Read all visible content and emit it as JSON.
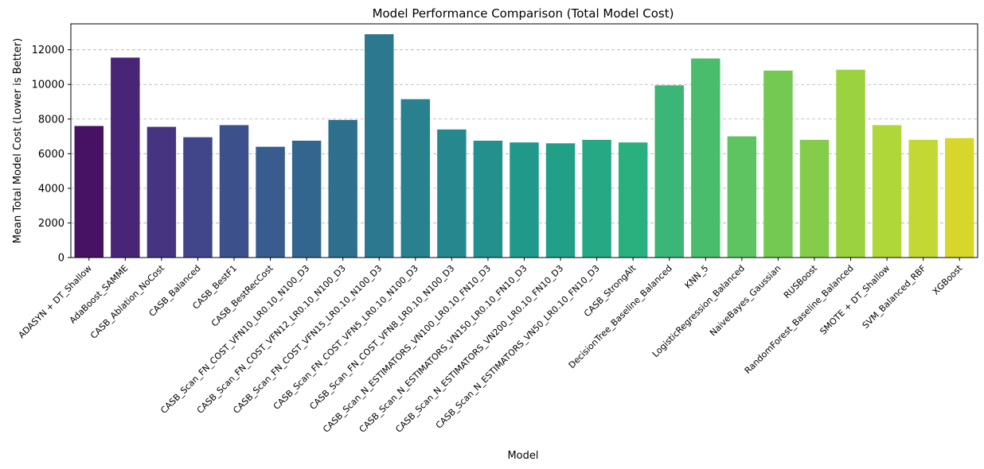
{
  "chart_data": {
    "type": "bar",
    "title": "Model Performance Comparison (Total Model Cost)",
    "xlabel": "Model",
    "ylabel": "Mean Total Model Cost (Lower is Better)",
    "ylim": [
      0,
      13500
    ],
    "yticks": [
      0,
      2000,
      4000,
      6000,
      8000,
      10000,
      12000
    ],
    "grid": "y-dashed",
    "palette": "viridis",
    "categories": [
      "ADASYN + DT_Shallow",
      "AdaBoost_SAMME",
      "CASB_Ablation_NoCost",
      "CASB_Balanced",
      "CASB_BestF1",
      "CASB_BestRecCost",
      "CASB_Scan_FN_COST_VFN10_LR0.10_N100_D3",
      "CASB_Scan_FN_COST_VFN12_LR0.10_N100_D3",
      "CASB_Scan_FN_COST_VFN15_LR0.10_N100_D3",
      "CASB_Scan_FN_COST_VFN5_LR0.10_N100_D3",
      "CASB_Scan_FN_COST_VFN8_LR0.10_N100_D3",
      "CASB_Scan_N_ESTIMATORS_VN100_LR0.10_FN10_D3",
      "CASB_Scan_N_ESTIMATORS_VN150_LR0.10_FN10_D3",
      "CASB_Scan_N_ESTIMATORS_VN200_LR0.10_FN10_D3",
      "CASB_Scan_N_ESTIMATORS_VN50_LR0.10_FN10_D3",
      "CASB_StrongAlt",
      "DecisionTree_Baseline_Balanced",
      "KNN_5",
      "LogisticRegression_Balanced",
      "NaiveBayes_Gaussian",
      "RUSBoost",
      "RandomForest_Baseline_Balanced",
      "SMOTE + DT_Shallow",
      "SVM_Balanced_RBF",
      "XGBoost"
    ],
    "values": [
      7600,
      11550,
      7550,
      6950,
      7650,
      6400,
      6750,
      7950,
      12900,
      9150,
      7400,
      6750,
      6650,
      6600,
      6800,
      6650,
      9950,
      11500,
      7000,
      10800,
      6800,
      10850,
      7650,
      6800,
      6900
    ],
    "colors": [
      "#471164",
      "#482576",
      "#463480",
      "#41458a",
      "#3c518b",
      "#375c8d",
      "#32668e",
      "#2e6f8e",
      "#2c788e",
      "#29818e",
      "#26888e",
      "#23908d",
      "#20998b",
      "#21a087",
      "#26a884",
      "#2ab07f",
      "#3bb677",
      "#4abd6d",
      "#5ec462",
      "#74c952",
      "#85cc4b",
      "#9ad240",
      "#afd73a",
      "#c3d834",
      "#d6d72a"
    ]
  }
}
